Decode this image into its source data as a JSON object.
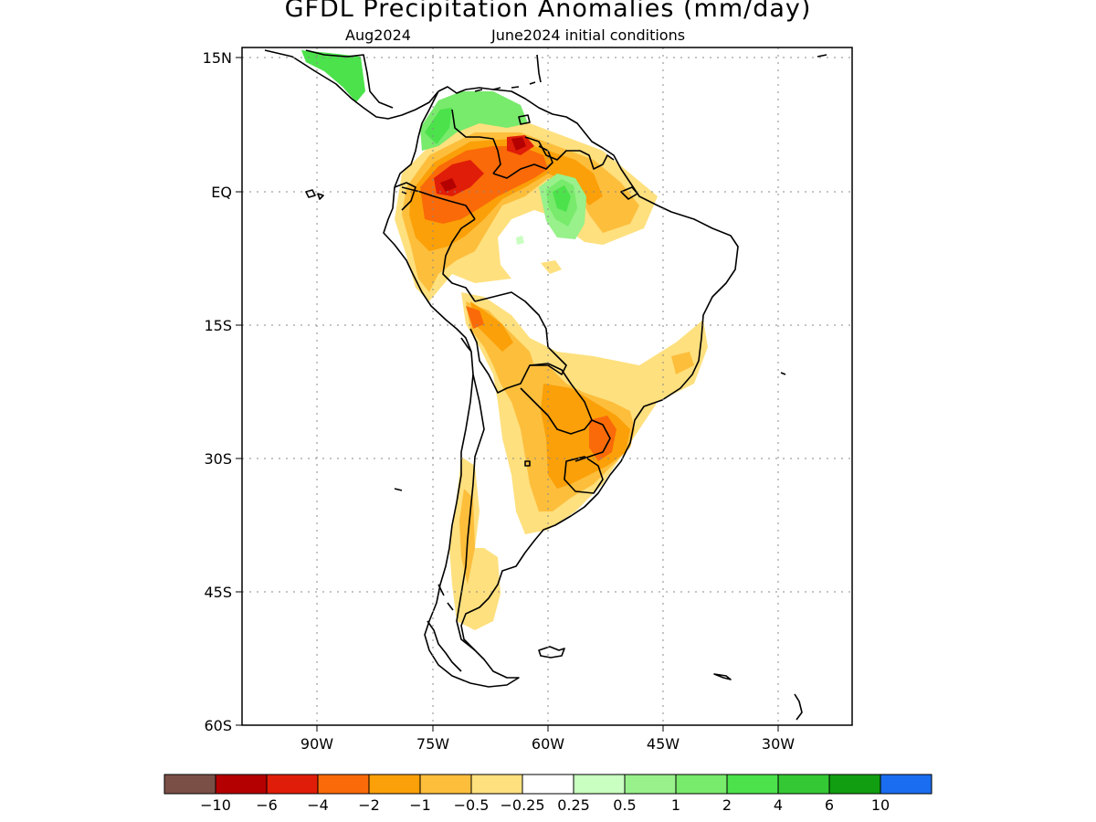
{
  "title": "GFDL Precipitation Anomalies (mm/day)",
  "subtitle_left": "Aug2024",
  "subtitle_right": "June2024 initial conditions",
  "axes": {
    "lat_labels": [
      "15N",
      "EQ",
      "15S",
      "30S",
      "45S",
      "60S"
    ],
    "lon_labels": [
      "90W",
      "75W",
      "60W",
      "45W",
      "30W"
    ]
  },
  "colorbar": {
    "colors": [
      "#7a5046",
      "#b40000",
      "#e01d08",
      "#fa6a08",
      "#fba008",
      "#fdbe3c",
      "#fee07e",
      "#ffffff",
      "#c9ffc1",
      "#98f18b",
      "#78ea6c",
      "#4be24b",
      "#34c934",
      "#119e11",
      "#1a6df0"
    ],
    "labels": [
      "-10",
      "-6",
      "-4",
      "-2",
      "-1",
      "-0.5",
      "-0.25",
      "0.25",
      "0.5",
      "1",
      "2",
      "4",
      "6",
      "10"
    ]
  }
}
